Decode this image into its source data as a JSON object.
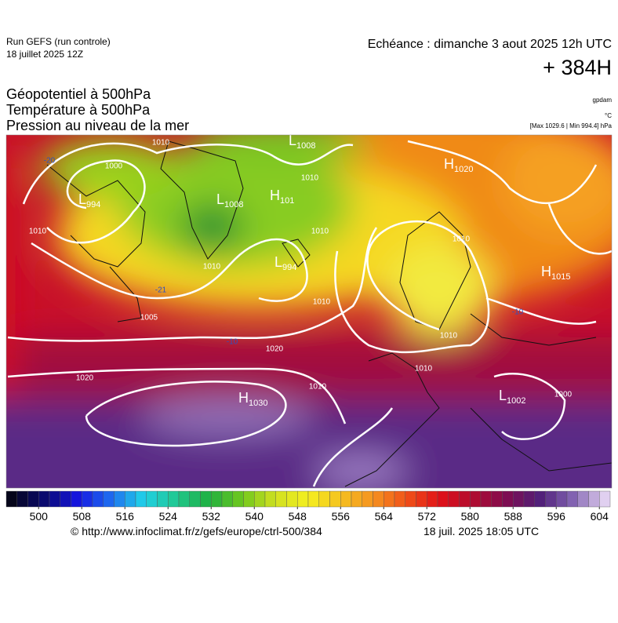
{
  "header": {
    "run": "Run GEFS (run controle)",
    "run_date": "18 juillet 2025 12Z",
    "echeance": "Echéance : dimanche 3 aout 2025 12h UTC",
    "lead": "+ 384H"
  },
  "titles": [
    "Géopotentiel à 500hPa",
    "Température à 500hPa",
    "Pression au niveau de la mer"
  ],
  "units": {
    "geo": "gpdam",
    "temp": "°C",
    "pressure": "[Max 1029.6 | Min 994.4] hPa"
  },
  "centers": [
    {
      "letter": "L",
      "value": "1008"
    },
    {
      "letter": "H",
      "value": "1020"
    },
    {
      "letter": "L",
      "value": "994"
    },
    {
      "letter": "L",
      "value": "1008"
    },
    {
      "letter": "H",
      "value": "101"
    },
    {
      "letter": "L",
      "value": "994"
    },
    {
      "letter": "H",
      "value": "1015"
    },
    {
      "letter": "H",
      "value": "1030"
    },
    {
      "letter": "L",
      "value": "1002"
    }
  ],
  "isobar_labels": [
    "1010",
    "1000",
    "1010",
    "1010",
    "1010",
    "1010",
    "1010",
    "1010",
    "1010",
    "1005",
    "1020",
    "1020",
    "1010",
    "1010",
    "1000"
  ],
  "temp_labels": [
    "-20",
    "-21",
    "-10",
    "-10"
  ],
  "colorbar": {
    "range": [
      494,
      606
    ],
    "step": 2,
    "ticks": [
      500,
      508,
      516,
      524,
      532,
      540,
      548,
      556,
      564,
      572,
      580,
      588,
      596,
      604
    ],
    "palette": [
      "#05051a",
      "#0a0a70",
      "#1515e0",
      "#1e6cf0",
      "#20d0e8",
      "#20c890",
      "#1fb040",
      "#70c81e",
      "#d0e020",
      "#f5f020",
      "#f5c020",
      "#f59020",
      "#f05018",
      "#e01018",
      "#b00c30",
      "#800c50",
      "#501e78",
      "#8060b0",
      "#e0d0f0"
    ]
  },
  "footer": {
    "url": "© http://www.infoclimat.fr/z/gefs/europe/ctrl-500/384",
    "date": "18 juil. 2025 18:05 UTC"
  }
}
